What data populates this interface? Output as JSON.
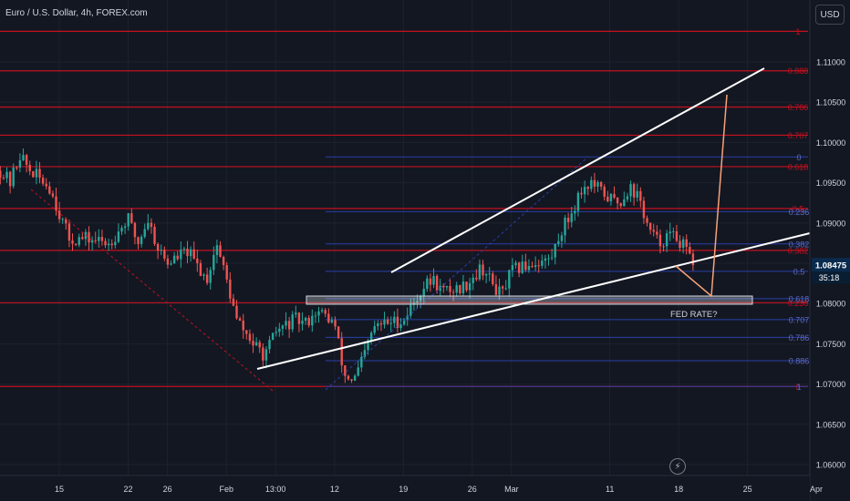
{
  "header": {
    "title": "Euro / U.S. Dollar, 4h, FOREX.com"
  },
  "currency_button": {
    "label": "USD"
  },
  "alert_icon": "lightning-bolt-icon",
  "colors": {
    "background": "#131722",
    "fib_major": "#c2111f",
    "fib_minor": "#2a3fa8",
    "candle_up": "#26a69a",
    "candle_down": "#ef5350",
    "projection": "#f7a27a",
    "trendline": "#ffffff",
    "price_tag": "#0a2b4e",
    "countdown_tag": "#0a1e33"
  },
  "chart_data": {
    "type": "candlestick",
    "symbol": "EURUSD",
    "interval": "4h",
    "ylim": [
      1.0575,
      1.116
    ],
    "y_ticks": [
      "1.11000",
      "1.10500",
      "1.10000",
      "1.09500",
      "1.09000",
      "1.08500",
      "1.08000",
      "1.07500",
      "1.07000",
      "1.06500",
      "1.06000"
    ],
    "x_ticks": [
      {
        "label": "15",
        "date": "2024-01-15"
      },
      {
        "label": "22",
        "date": "2024-01-22"
      },
      {
        "label": "26",
        "date": "2024-01-26"
      },
      {
        "label": "Feb",
        "date": "2024-02-01"
      },
      {
        "label": "13:00",
        "date": "2024-02-06"
      },
      {
        "label": "12",
        "date": "2024-02-12"
      },
      {
        "label": "19",
        "date": "2024-02-19"
      },
      {
        "label": "26",
        "date": "2024-02-26"
      },
      {
        "label": "Mar",
        "date": "2024-03-01"
      },
      {
        "label": "11",
        "date": "2024-03-11"
      },
      {
        "label": "18",
        "date": "2024-03-18"
      },
      {
        "label": "25",
        "date": "2024-03-25"
      },
      {
        "label": "Apr",
        "date": "2024-04-01"
      }
    ],
    "current_price": {
      "label": "1.08475",
      "value": 1.08475,
      "countdown": "35:18"
    },
    "price_path": [
      [
        "2024-01-09",
        1.0965
      ],
      [
        "2024-01-10",
        1.095
      ],
      [
        "2024-01-11",
        1.0985
      ],
      [
        "2024-01-12",
        1.0965
      ],
      [
        "2024-01-14",
        1.0945
      ],
      [
        "2024-01-16",
        1.088
      ],
      [
        "2024-01-18",
        1.088
      ],
      [
        "2024-01-20",
        1.0875
      ],
      [
        "2024-01-22",
        1.0905
      ],
      [
        "2024-01-23",
        1.0875
      ],
      [
        "2024-01-24",
        1.0905
      ],
      [
        "2024-01-25",
        1.087
      ],
      [
        "2024-01-26",
        1.085
      ],
      [
        "2024-01-28",
        1.0865
      ],
      [
        "2024-01-30",
        1.083
      ],
      [
        "2024-01-31",
        1.0875
      ],
      [
        "2024-02-01",
        1.083
      ],
      [
        "2024-02-02",
        1.078
      ],
      [
        "2024-02-04",
        1.0745
      ],
      [
        "2024-02-05",
        1.0735
      ],
      [
        "2024-02-06",
        1.0765
      ],
      [
        "2024-02-08",
        1.078
      ],
      [
        "2024-02-09",
        1.0775
      ],
      [
        "2024-02-10",
        1.079
      ],
      [
        "2024-02-11",
        1.0785
      ],
      [
        "2024-02-12",
        1.0775
      ],
      [
        "2024-02-13",
        1.071
      ],
      [
        "2024-02-14",
        1.0705
      ],
      [
        "2024-02-15",
        1.0735
      ],
      [
        "2024-02-16",
        1.077
      ],
      [
        "2024-02-17",
        1.0775
      ],
      [
        "2024-02-19",
        1.078
      ],
      [
        "2024-02-21",
        1.082
      ],
      [
        "2024-02-22",
        1.083
      ],
      [
        "2024-02-23",
        1.0815
      ],
      [
        "2024-02-25",
        1.082
      ],
      [
        "2024-02-27",
        1.0845
      ],
      [
        "2024-02-28",
        1.0825
      ],
      [
        "2024-02-29",
        1.081
      ],
      [
        "2024-03-01",
        1.084
      ],
      [
        "2024-03-03",
        1.085
      ],
      [
        "2024-03-05",
        1.0855
      ],
      [
        "2024-03-06",
        1.089
      ],
      [
        "2024-03-07",
        1.091
      ],
      [
        "2024-03-08",
        1.094
      ],
      [
        "2024-03-09",
        1.095
      ],
      [
        "2024-03-11",
        1.093
      ],
      [
        "2024-03-12",
        1.0925
      ],
      [
        "2024-03-13",
        1.0945
      ],
      [
        "2024-03-14",
        1.093
      ],
      [
        "2024-03-15",
        1.089
      ],
      [
        "2024-03-16",
        1.0875
      ],
      [
        "2024-03-17",
        1.0885
      ],
      [
        "2024-03-18",
        1.088
      ],
      [
        "2024-03-19",
        1.086
      ],
      [
        "2024-03-19T16:00",
        1.08475
      ]
    ],
    "fib_major": {
      "levels": [
        {
          "label": "1",
          "price": 1.1138
        },
        {
          "label": "0.888",
          "price": 1.1089
        },
        {
          "label": "0.786",
          "price": 1.1044
        },
        {
          "label": "0.707",
          "price": 1.1009
        },
        {
          "label": "0.618",
          "price": 1.097
        },
        {
          "label": "0.5",
          "price": 1.0918
        },
        {
          "label": "0.382",
          "price": 1.0866
        },
        {
          "label": "0.236",
          "price": 1.0801
        },
        {
          "label": "0",
          "price": 1.0697
        }
      ]
    },
    "fib_minor": {
      "levels": [
        {
          "label": "0",
          "price": 1.0982
        },
        {
          "label": "0.236",
          "price": 1.0914
        },
        {
          "label": "0.382",
          "price": 1.0874
        },
        {
          "label": "0.5",
          "price": 1.084
        },
        {
          "label": "0.618",
          "price": 1.0806
        },
        {
          "label": "0.707",
          "price": 1.078
        },
        {
          "label": "0.786",
          "price": 1.0758
        },
        {
          "label": "0.886",
          "price": 1.0729
        },
        {
          "label": "1",
          "price": 1.0697
        }
      ]
    },
    "annotations": [
      {
        "label": "FED RATE?"
      }
    ]
  }
}
